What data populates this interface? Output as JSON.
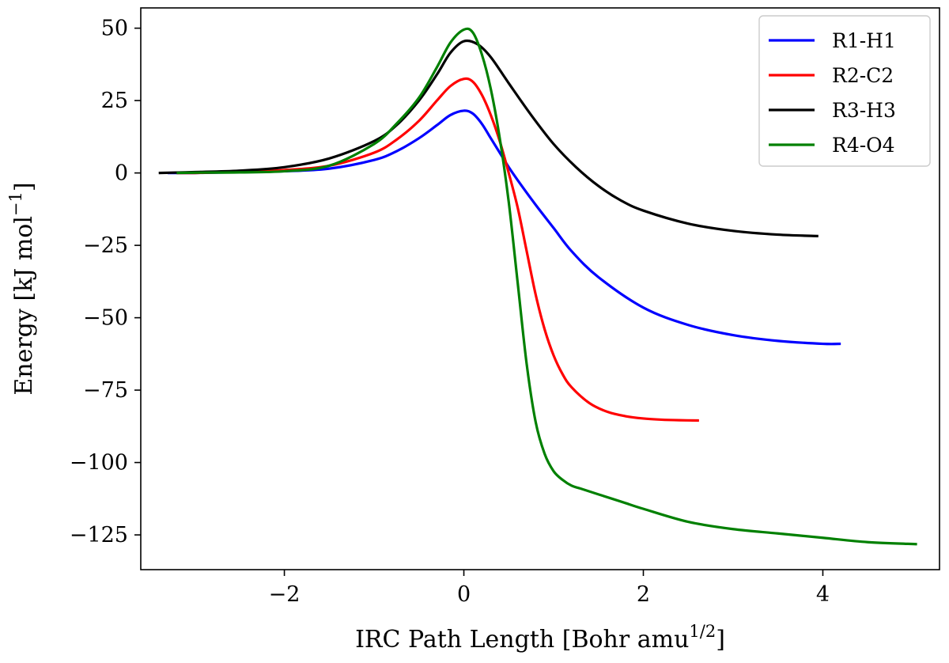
{
  "chart_data": {
    "type": "line",
    "title": "",
    "xlabel": {
      "main": "IRC Path Length [Bohr amu",
      "sup": "1/2",
      "end": "]"
    },
    "ylabel": {
      "main": "Energy [kJ mol",
      "sup": "−1",
      "end": "]"
    },
    "xlim": [
      -3.6,
      5.3
    ],
    "ylim": [
      -137,
      57
    ],
    "xticks": [
      -2,
      0,
      2,
      4
    ],
    "xtick_labels": [
      "−2",
      "0",
      "2",
      "4"
    ],
    "yticks": [
      50,
      25,
      0,
      -25,
      -50,
      -75,
      -100,
      -125
    ],
    "ytick_labels": [
      "50",
      "25",
      "0",
      "−25",
      "−50",
      "−75",
      "−100",
      "−125"
    ],
    "grid": false,
    "legend_position": "top-right",
    "series": [
      {
        "name": "R1-H1",
        "color": "#0000ff",
        "x": [
          -3.3,
          -3.0,
          -2.5,
          -2.0,
          -1.5,
          -1.0,
          -0.75,
          -0.5,
          -0.3,
          -0.15,
          0.0,
          0.1,
          0.2,
          0.3,
          0.4,
          0.5,
          0.6,
          0.8,
          1.0,
          1.2,
          1.5,
          2.0,
          2.5,
          3.0,
          3.5,
          4.0,
          4.2
        ],
        "y": [
          0,
          0,
          0.3,
          0.6,
          1.5,
          4.5,
          7.5,
          12,
          16.5,
          20,
          21.5,
          20.5,
          17,
          12,
          7,
          2,
          -2.5,
          -11,
          -19,
          -27,
          -36,
          -46.5,
          -52.5,
          -56,
          -58,
          -59,
          -59
        ]
      },
      {
        "name": "R2-C2",
        "color": "#ff0000",
        "x": [
          -3.2,
          -3.0,
          -2.5,
          -2.0,
          -1.5,
          -1.0,
          -0.75,
          -0.5,
          -0.3,
          -0.15,
          0.0,
          0.1,
          0.2,
          0.3,
          0.4,
          0.5,
          0.6,
          0.7,
          0.8,
          0.9,
          1.0,
          1.1,
          1.2,
          1.4,
          1.6,
          1.8,
          2.0,
          2.2,
          2.4,
          2.62
        ],
        "y": [
          0,
          0,
          0.4,
          1,
          2.5,
          7,
          11.5,
          18,
          25,
          30,
          32.5,
          31.5,
          27,
          20,
          11,
          0,
          -12,
          -27,
          -42,
          -54,
          -63,
          -69.5,
          -74,
          -79.5,
          -82.5,
          -84,
          -84.8,
          -85.2,
          -85.4,
          -85.5
        ]
      },
      {
        "name": "R3-H3",
        "color": "#000000",
        "x": [
          -3.4,
          -3.0,
          -2.5,
          -2.0,
          -1.5,
          -1.0,
          -0.75,
          -0.5,
          -0.3,
          -0.15,
          0.0,
          0.15,
          0.3,
          0.5,
          0.75,
          1.0,
          1.25,
          1.5,
          1.75,
          2.0,
          2.5,
          3.0,
          3.5,
          3.95
        ],
        "y": [
          0,
          0.3,
          0.8,
          2,
          5,
          11,
          16.5,
          25,
          34,
          41.5,
          45.5,
          44.5,
          40,
          31,
          20,
          10,
          2,
          -4.5,
          -9.5,
          -13,
          -17.5,
          -20,
          -21.3,
          -21.8
        ]
      },
      {
        "name": "R4-O4",
        "color": "#008000",
        "x": [
          -3.2,
          -3.0,
          -2.5,
          -2.0,
          -1.5,
          -1.0,
          -0.75,
          -0.5,
          -0.3,
          -0.15,
          0.0,
          0.1,
          0.2,
          0.3,
          0.4,
          0.5,
          0.6,
          0.7,
          0.8,
          0.9,
          1.0,
          1.1,
          1.2,
          1.3,
          1.5,
          1.8,
          2.0,
          2.5,
          3.0,
          3.5,
          4.0,
          4.5,
          5.05
        ],
        "y": [
          0,
          0.1,
          0.2,
          0.6,
          2.5,
          10,
          17,
          26,
          36.5,
          45,
          49.5,
          48.5,
          41,
          29,
          12,
          -10,
          -38,
          -66,
          -86,
          -97,
          -103,
          -106,
          -108,
          -109,
          -111,
          -114,
          -116,
          -120.5,
          -123,
          -124.5,
          -126,
          -127.5,
          -128.2
        ]
      }
    ]
  }
}
